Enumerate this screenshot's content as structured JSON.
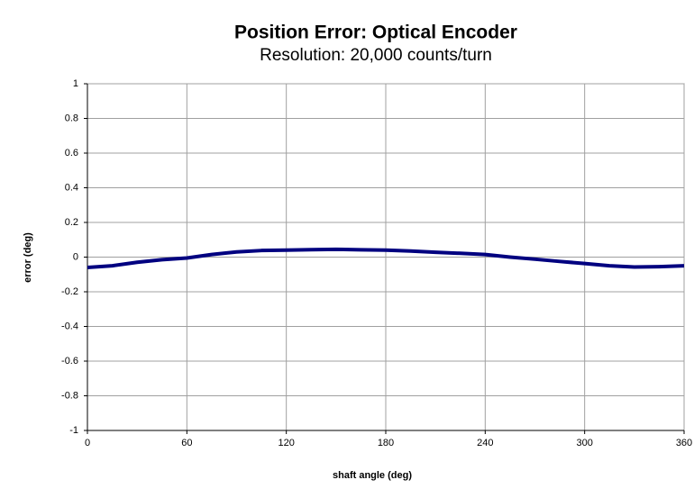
{
  "chart_data": {
    "type": "line",
    "title": "Position Error: Optical Encoder",
    "subtitle": "Resolution: 20,000 counts/turn",
    "x_label": "shaft angle (deg)",
    "y_label": "error (deg)",
    "x": [
      0,
      15,
      30,
      45,
      60,
      75,
      90,
      105,
      120,
      135,
      150,
      165,
      180,
      195,
      210,
      225,
      240,
      255,
      270,
      285,
      300,
      315,
      330,
      345,
      360
    ],
    "series": [
      {
        "color": "#000080",
        "values": [
          -0.06,
          -0.05,
          -0.03,
          -0.015,
          -0.005,
          0.015,
          0.03,
          0.038,
          0.04,
          0.043,
          0.045,
          0.042,
          0.04,
          0.035,
          0.028,
          0.022,
          0.015,
          0.0,
          -0.012,
          -0.025,
          -0.037,
          -0.05,
          -0.057,
          -0.055,
          -0.05
        ]
      }
    ],
    "xlim": [
      0,
      360
    ],
    "xticks": [
      0,
      60,
      120,
      180,
      240,
      300,
      360
    ],
    "ylim": [
      -1,
      1
    ],
    "yticks": [
      -1,
      -0.8,
      -0.6,
      -0.4,
      -0.2,
      0,
      0.2,
      0.4,
      0.6,
      0.8,
      1
    ],
    "grid": true
  }
}
